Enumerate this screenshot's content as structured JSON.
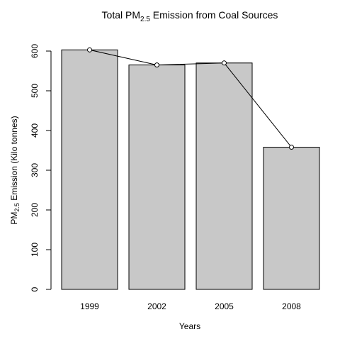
{
  "chart_data": {
    "type": "bar",
    "title_main": "Total PM",
    "title_sub": "2.5",
    "title_rest": " Emission from Coal Sources",
    "xlabel": "Years",
    "ylabel_main": "PM",
    "ylabel_sub": "2.5",
    "ylabel_rest": " Emission (Kilo tonnes)",
    "categories": [
      "1999",
      "2002",
      "2005",
      "2008"
    ],
    "values": [
      603,
      565,
      570,
      358
    ],
    "line_overlay": true,
    "ylim": [
      0,
      600
    ],
    "yticks": [
      0,
      100,
      200,
      300,
      400,
      500,
      600
    ],
    "colors": {
      "bar_fill": "#c8c8c8",
      "bar_stroke": "#000000",
      "line": "#000000"
    }
  }
}
